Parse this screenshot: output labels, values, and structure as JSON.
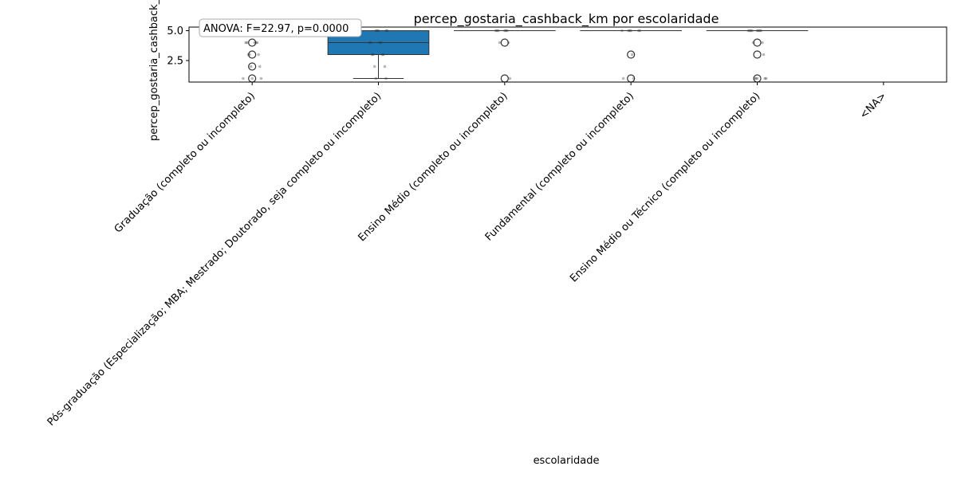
{
  "chart_data": {
    "type": "box",
    "title": "percep_gostaria_cashback_km por escolaridade",
    "xlabel": "escolaridade",
    "ylabel": "percep_gostaria_cashback_km",
    "annotation": "ANOVA: F=22.97, p=0.0000",
    "ylim": [
      0.7,
      5.3
    ],
    "yticks": [
      2.5,
      5.0
    ],
    "ytick_labels": [
      "2.5",
      "5.0"
    ],
    "categories": [
      "Graduação (completo ou incompleto)",
      "Pós-graduação (Especialização; MBA; Mestrado; Doutorado, seja completo ou incompleto)",
      "Ensino Médio (completo ou incompleto)",
      "Fundamental (completo ou incompleto)",
      "Ensino Médio ou Técnico (completo ou incompleto)",
      "<NA>"
    ],
    "boxes": [
      {
        "q1": 5,
        "median": 5,
        "q3": 5,
        "whisker_low": 5,
        "whisker_high": 5,
        "outliers": [
          1,
          2,
          3,
          4
        ],
        "points": [
          1,
          1,
          1,
          2,
          2,
          3,
          3,
          3,
          4,
          4,
          4,
          4,
          4,
          5,
          5,
          5,
          5
        ]
      },
      {
        "q1": 3,
        "median": 4,
        "q3": 5,
        "whisker_low": 1,
        "whisker_high": 5,
        "outliers": [],
        "points": [
          1,
          1,
          2,
          2,
          3,
          3,
          3,
          3,
          4,
          4,
          4,
          4,
          5,
          5,
          5,
          5,
          5
        ]
      },
      {
        "q1": 5,
        "median": 5,
        "q3": 5,
        "whisker_low": 5,
        "whisker_high": 5,
        "outliers": [
          1,
          4
        ],
        "points": [
          1,
          4,
          4,
          5,
          5,
          5,
          5,
          5,
          5
        ]
      },
      {
        "q1": 5,
        "median": 5,
        "q3": 5,
        "whisker_low": 5,
        "whisker_high": 5,
        "outliers": [
          1,
          3
        ],
        "points": [
          1,
          1,
          3,
          5,
          5,
          5,
          5,
          5,
          5
        ]
      },
      {
        "q1": 5,
        "median": 5,
        "q3": 5,
        "whisker_low": 5,
        "whisker_high": 5,
        "outliers": [
          1,
          3,
          4
        ],
        "points": [
          1,
          1,
          1,
          1,
          1,
          3,
          4,
          4,
          5,
          5,
          5,
          5,
          5,
          5,
          5,
          5
        ]
      },
      {
        "q1": null,
        "median": null,
        "q3": null,
        "whisker_low": null,
        "whisker_high": null,
        "outliers": [],
        "points": []
      }
    ],
    "colors": {
      "box_fill": "#1f77b4",
      "box_edge": "#333333",
      "points": "#333333",
      "outlier_edge": "#333333",
      "annotation_border": "#aaaaaa"
    },
    "grid": false,
    "legend": "none"
  }
}
